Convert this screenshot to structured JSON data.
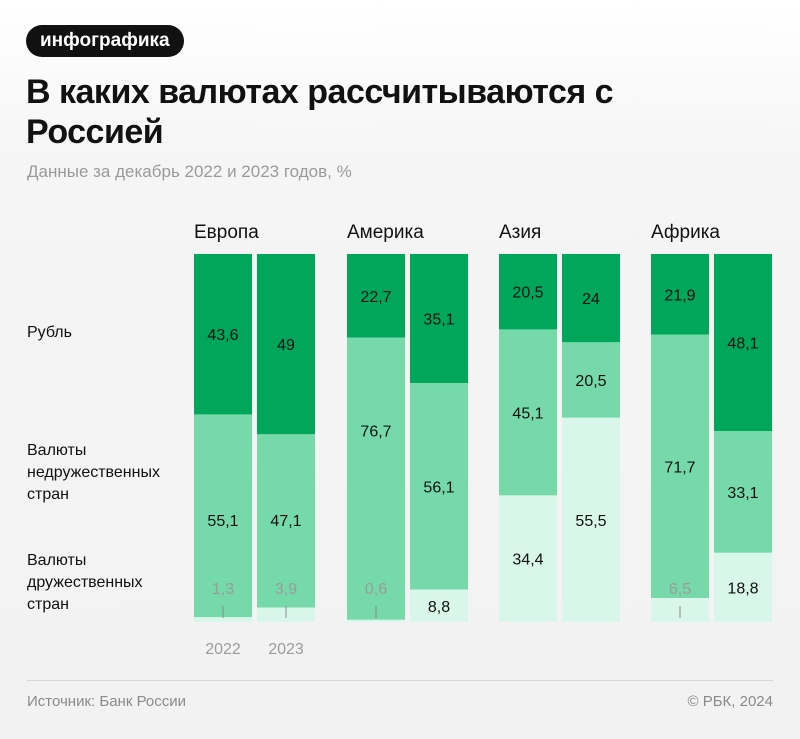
{
  "badge": "инфографика",
  "title": "В каких валютах рассчитываются с Россией",
  "subtitle": "Данные за декабрь 2022 и 2023 годов, %",
  "row_labels": {
    "ruble": "Рубль",
    "unfriendly": "Валюты недружественных стран",
    "friendly": "Валюты дружественных стран"
  },
  "colors": {
    "ruble": "#00a65a",
    "unfriendly": "#76d9a9",
    "friendly": "#d8f7ea",
    "label_dark": "#111111",
    "label_muted": "#9b9b9b"
  },
  "chart_data": {
    "type": "bar",
    "stacked": true,
    "normalized_to": 100,
    "unit": "%",
    "years": [
      "2022",
      "2023"
    ],
    "series_order": [
      "Рубль",
      "Валюты недружественных стран",
      "Валюты дружественных стран"
    ],
    "regions": [
      {
        "name": "Европа",
        "bars": [
          {
            "year": "2022",
            "ruble": 43.6,
            "unfriendly": 55.1,
            "friendly": 1.3,
            "labels": {
              "ruble": "43,6",
              "unfriendly": "55,1",
              "friendly": "1,3"
            }
          },
          {
            "year": "2023",
            "ruble": 49,
            "unfriendly": 47.1,
            "friendly": 3.9,
            "labels": {
              "ruble": "49",
              "unfriendly": "47,1",
              "friendly": "3,9"
            }
          }
        ]
      },
      {
        "name": "Америка",
        "bars": [
          {
            "year": "2022",
            "ruble": 22.7,
            "unfriendly": 76.7,
            "friendly": 0.6,
            "labels": {
              "ruble": "22,7",
              "unfriendly": "76,7",
              "friendly": "0,6"
            }
          },
          {
            "year": "2023",
            "ruble": 35.1,
            "unfriendly": 56.1,
            "friendly": 8.8,
            "labels": {
              "ruble": "35,1",
              "unfriendly": "56,1",
              "friendly": "8,8"
            }
          }
        ]
      },
      {
        "name": "Азия",
        "bars": [
          {
            "year": "2022",
            "ruble": 20.5,
            "unfriendly": 45.1,
            "friendly": 34.4,
            "labels": {
              "ruble": "20,5",
              "unfriendly": "45,1",
              "friendly": "34,4"
            }
          },
          {
            "year": "2023",
            "ruble": 24,
            "unfriendly": 20.5,
            "friendly": 55.5,
            "labels": {
              "ruble": "24",
              "unfriendly": "20,5",
              "friendly": "55,5"
            }
          }
        ]
      },
      {
        "name": "Африка",
        "bars": [
          {
            "year": "2022",
            "ruble": 21.9,
            "unfriendly": 71.7,
            "friendly": 6.5,
            "labels": {
              "ruble": "21,9",
              "unfriendly": "71,7",
              "friendly": "6,5"
            }
          },
          {
            "year": "2023",
            "ruble": 48.1,
            "unfriendly": 33.1,
            "friendly": 18.8,
            "labels": {
              "ruble": "48,1",
              "unfriendly": "33,1",
              "friendly": "18,8"
            }
          }
        ]
      }
    ]
  },
  "footer": {
    "source": "Источник: Банк России",
    "copyright": "© РБК, 2024"
  }
}
